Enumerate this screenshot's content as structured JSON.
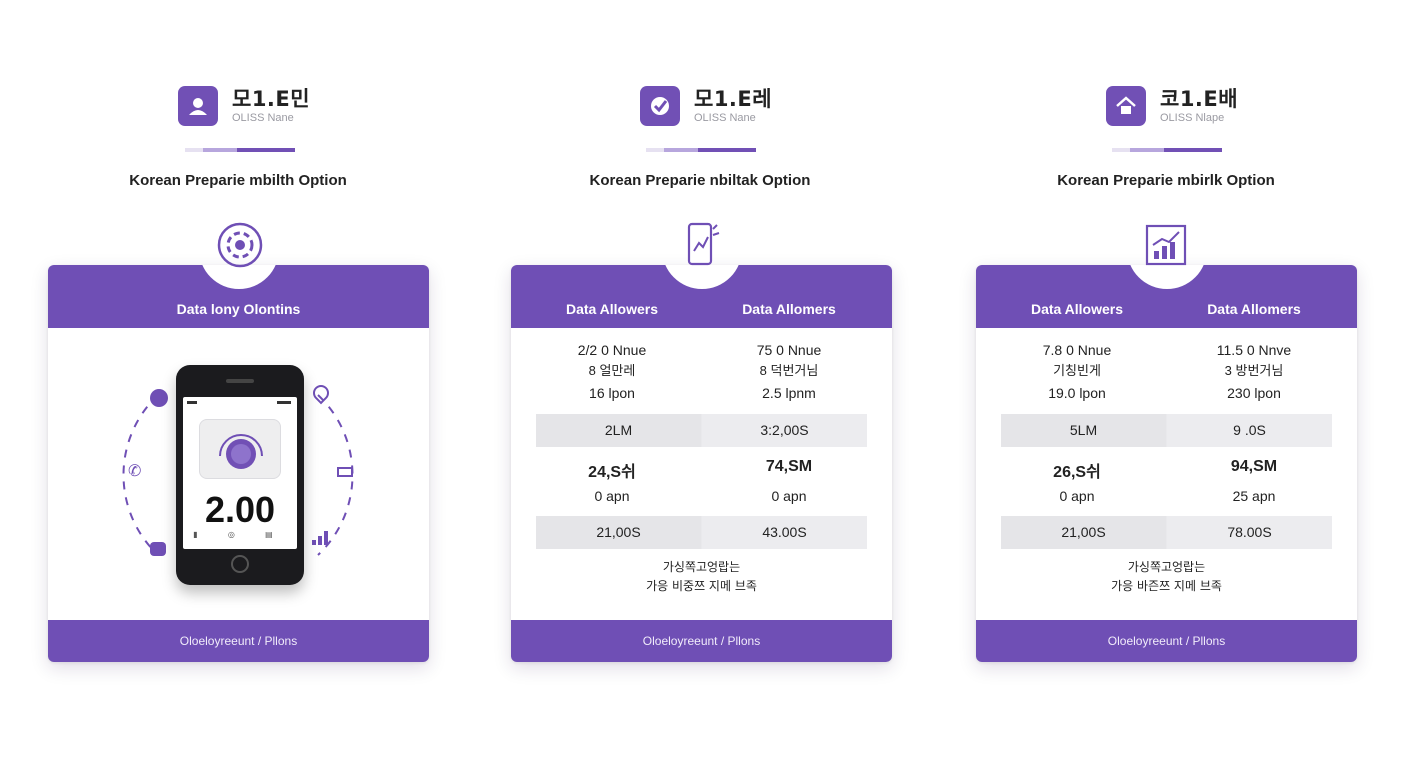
{
  "columns": [
    {
      "brand_title": "모1.E민",
      "brand_sub": "OLISS Nane",
      "brand_icon": "user-icon",
      "option_label": "Korean Preparie mbilth Option",
      "card_icon": "target-icon",
      "card_header": "Data lony Olontins",
      "phone_value": "2.00",
      "footer": "Oloeloyreeunt / Pllons"
    },
    {
      "brand_title": "모1.E레",
      "brand_sub": "OLISS Nane",
      "brand_icon": "checkmark-icon",
      "option_label": "Korean Preparie nbiltak Option",
      "card_icon": "mobile-phone-icon",
      "headers": [
        "Data Allowers",
        "Data Allomers"
      ],
      "rows": {
        "a1": [
          "2/2 0 Nnue",
          "75 0 Nnue"
        ],
        "a2": [
          "8 얼만레",
          "8 덕번거님"
        ],
        "a3": [
          "16 lpon",
          "2.5 lpnm"
        ],
        "band1": [
          "2LM",
          "3:2,00S"
        ],
        "b1": [
          "24,S쉬",
          "74,SM"
        ],
        "b2": [
          "0 apn",
          "0 apn"
        ],
        "band2": [
          "21,00S",
          "43.00S"
        ]
      },
      "note_line1": "가싱쪽고엉랍는",
      "note_line2": "가응 비중쯔 지메 브족",
      "footer": "Oloeloyreeunt / Pllons"
    },
    {
      "brand_title": "코1.E배",
      "brand_sub": "OLISS Nlape",
      "brand_icon": "home-icon",
      "option_label": "Korean Preparie mbirlk Option",
      "card_icon": "bar-chart-icon",
      "headers": [
        "Data Allowers",
        "Data Allomers"
      ],
      "rows": {
        "a1": [
          "7.8 0 Nnue",
          "11.5 0 Nnve"
        ],
        "a2": [
          "기칭빈게",
          "3 방번거님"
        ],
        "a3": [
          "19.0 lpon",
          "230 lpon"
        ],
        "band1": [
          "5LM",
          "9 .0S"
        ],
        "b1": [
          "26,S쉬",
          "94,SM"
        ],
        "b2": [
          "0 apn",
          "25 apn"
        ],
        "band2": [
          "21,00S",
          "78.00S"
        ]
      },
      "note_line1": "가싱쪽고엉랍는",
      "note_line2": "가응 바즌쯔 지메 브족",
      "footer": "Oloeloyreeunt / Pllons"
    }
  ],
  "colors": {
    "accent": "#6f4fb5",
    "band": "#e9e9ec",
    "text": "#222222"
  }
}
